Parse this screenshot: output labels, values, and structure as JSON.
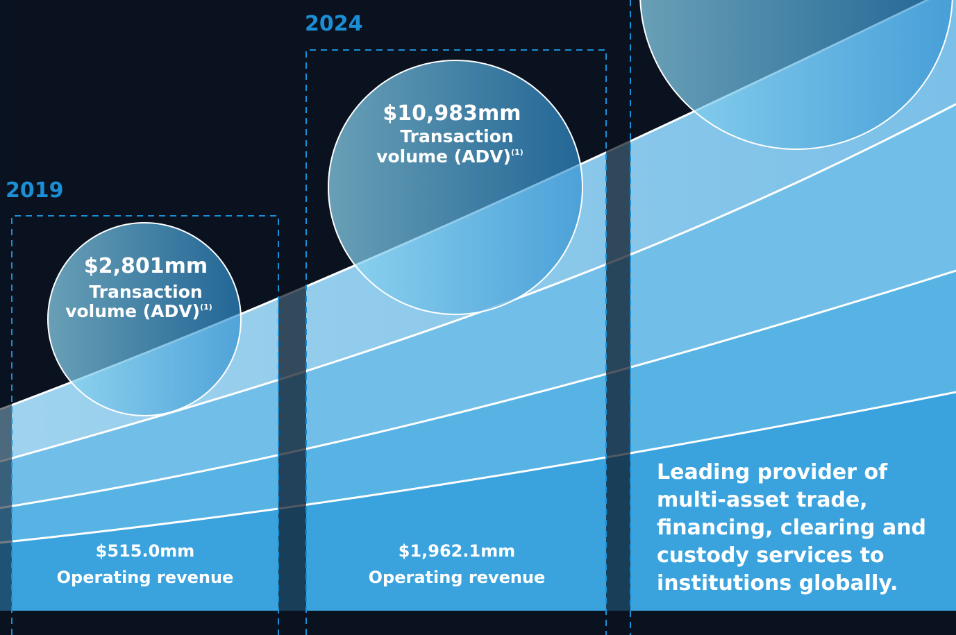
{
  "panels": [
    {
      "year": "2019",
      "volume": "$2,801mm",
      "volume_label_1": "Transaction",
      "volume_label_2": "volume (ADV)",
      "footnote": "(1)",
      "revenue": "$515.0mm",
      "revenue_label": "Operating revenue"
    },
    {
      "year": "2024",
      "volume": "$10,983mm",
      "volume_label_1": "Transaction",
      "volume_label_2": "volume (ADV)",
      "footnote": "(1)",
      "revenue": "$1,962.1mm",
      "revenue_label": "Operating revenue"
    }
  ],
  "tagline": [
    "Leading provider of",
    "multi-asset trade,",
    "financing, clearing and",
    "custody services to",
    "institutions globally."
  ]
}
